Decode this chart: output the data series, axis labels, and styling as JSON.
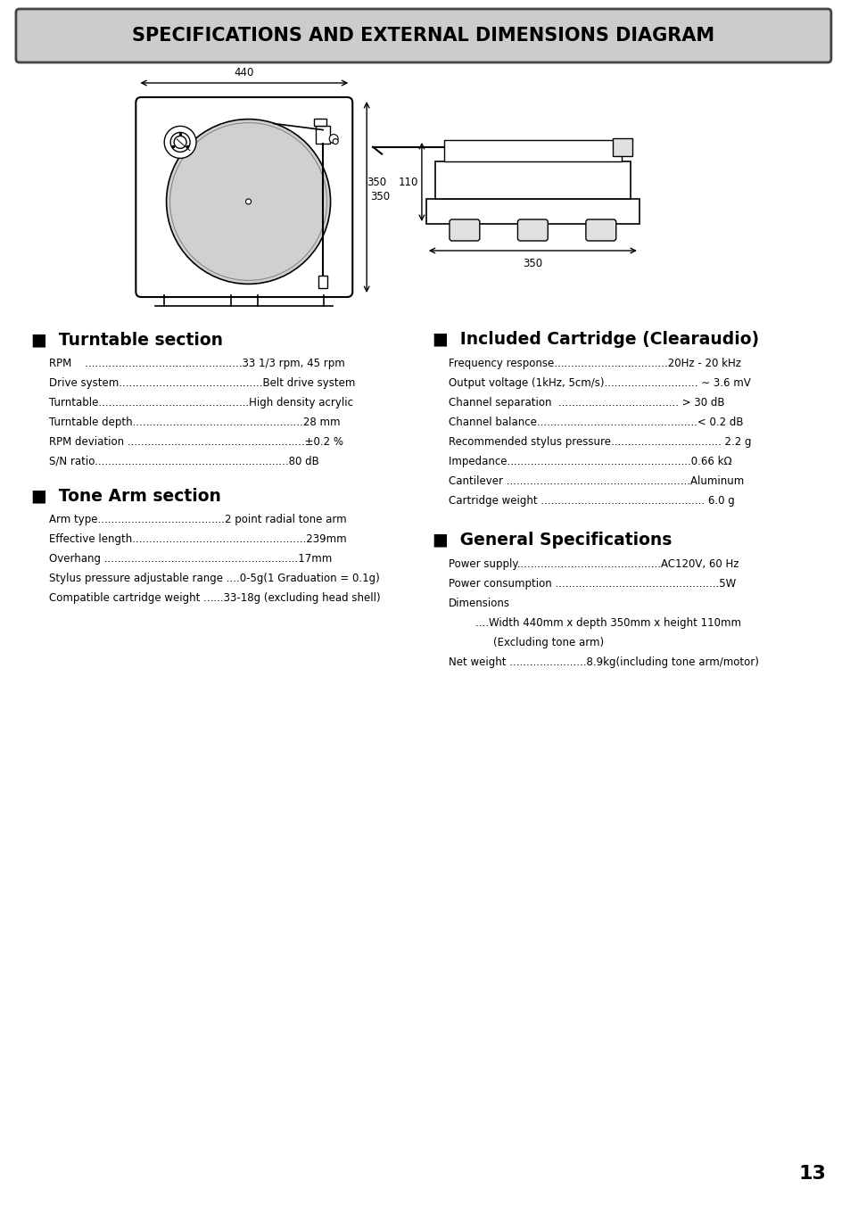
{
  "title": "SPECIFICATIONS AND EXTERNAL DIMENSIONS DIAGRAM",
  "bg_color": "#ffffff",
  "header_bg": "#cccccc",
  "turntable_specs": [
    "RPM    ...............................................33 1/3 rpm, 45 rpm",
    "Drive system...........................................Belt drive system",
    "Turntable.............................................High density acrylic",
    "Turntable depth...................................................28 mm",
    "RPM deviation .....................................................±0.2 %",
    "S/N ratio..........................................................80 dB"
  ],
  "tone_arm_specs": [
    "Arm type......................................2 point radial tone arm",
    "Effective length....................................................239mm",
    "Overhang ..........................................................17mm",
    "Stylus pressure adjustable range ....0-5g(1 Graduation = 0.1g)",
    "Compatible cartridge weight ......33-18g (excluding head shell)"
  ],
  "cartridge_specs": [
    "Frequency response..................................20Hz - 20 kHz",
    "Output voltage (1kHz, 5cm/s)............................ ∼ 3.6 mV",
    "Channel separation  .................................... > 30 dB",
    "Channel balance................................................< 0.2 dB",
    "Recommended stylus pressure................................. 2.2 g",
    "Impedance.......................................................0.66 kΩ",
    "Cantilever .......................................................Aluminum",
    "Cartridge weight ................................................. 6.0 g"
  ],
  "general_specs_line1": "Power supply...........................................AC120V, 60 Hz",
  "general_specs_line2": "Power consumption .................................................5W",
  "general_specs_line3": "Dimensions",
  "general_specs_line4": "....Width 440mm x depth 350mm x height 110mm",
  "general_specs_line5": "(Excluding tone arm)",
  "general_specs_line6": "Net weight .......................8.9kg(including tone arm/motor)",
  "page_number": "13",
  "dim_440": "440",
  "dim_350": "350",
  "dim_110": "110",
  "dim_350b": "350"
}
